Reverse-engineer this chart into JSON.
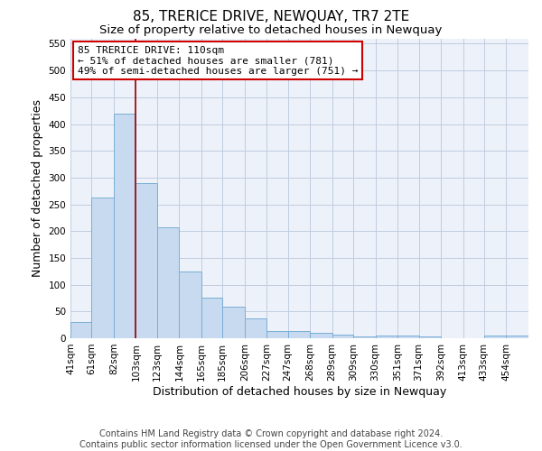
{
  "title": "85, TRERICE DRIVE, NEWQUAY, TR7 2TE",
  "subtitle": "Size of property relative to detached houses in Newquay",
  "xlabel": "Distribution of detached houses by size in Newquay",
  "ylabel": "Number of detached properties",
  "footer_line1": "Contains HM Land Registry data © Crown copyright and database right 2024.",
  "footer_line2": "Contains public sector information licensed under the Open Government Licence v3.0.",
  "bin_labels": [
    "41sqm",
    "61sqm",
    "82sqm",
    "103sqm",
    "123sqm",
    "144sqm",
    "165sqm",
    "185sqm",
    "206sqm",
    "227sqm",
    "247sqm",
    "268sqm",
    "289sqm",
    "309sqm",
    "330sqm",
    "351sqm",
    "371sqm",
    "392sqm",
    "413sqm",
    "433sqm",
    "454sqm"
  ],
  "bar_values": [
    30,
    263,
    420,
    290,
    207,
    125,
    76,
    59,
    37,
    14,
    14,
    10,
    6,
    4,
    5,
    5,
    4,
    0,
    0,
    5,
    5
  ],
  "bar_color": "#c8daf0",
  "bar_edge_color": "#7aaed4",
  "grid_color": "#c0cce0",
  "bg_color": "#edf2fa",
  "vline_x": 103,
  "annotation_line1": "85 TRERICE DRIVE: 110sqm",
  "annotation_line2": "← 51% of detached houses are smaller (781)",
  "annotation_line3": "49% of semi-detached houses are larger (751) →",
  "annotation_box_color": "#ffffff",
  "annotation_box_edge": "#cc0000",
  "vline_color": "#990000",
  "ylim_max": 560,
  "yticks": [
    0,
    50,
    100,
    150,
    200,
    250,
    300,
    350,
    400,
    450,
    500,
    550
  ],
  "bin_edges": [
    41,
    61,
    82,
    103,
    123,
    144,
    165,
    185,
    206,
    227,
    247,
    268,
    289,
    309,
    330,
    351,
    371,
    392,
    413,
    433,
    454,
    475
  ],
  "title_fontsize": 11,
  "subtitle_fontsize": 9.5,
  "axis_label_fontsize": 9,
  "tick_fontsize": 7.5,
  "annotation_fontsize": 8,
  "footer_fontsize": 7
}
